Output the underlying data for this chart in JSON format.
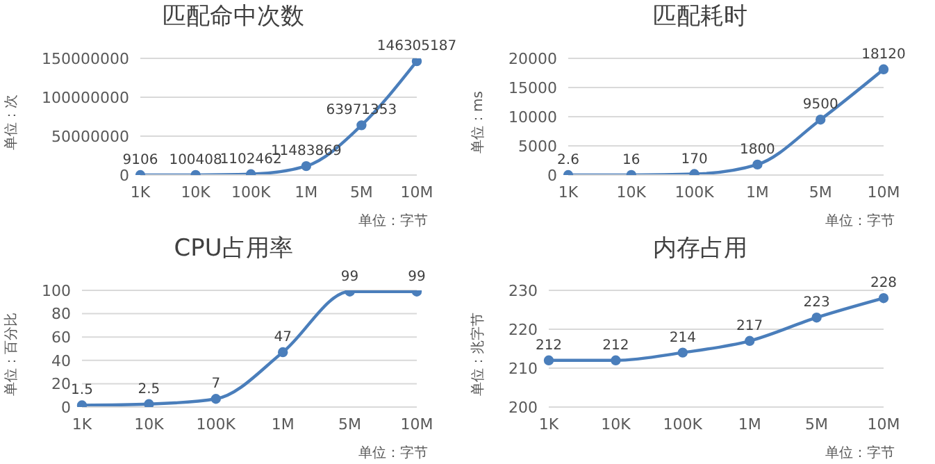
{
  "chart_data": [
    {
      "type": "line",
      "title": "匹配命中次数",
      "ylabel": "单位：次",
      "xlabel": "单位：字节",
      "categories": [
        "1K",
        "10K",
        "100K",
        "1M",
        "5M",
        "10M"
      ],
      "series": [
        {
          "color": "#4a7ebb",
          "values": [
            9106,
            100408,
            1102462,
            11483869,
            63971353,
            146305187
          ]
        }
      ],
      "ylim": [
        0,
        150000000
      ],
      "yticks": [
        0,
        50000000,
        100000000,
        150000000
      ],
      "grid": "y",
      "marker": "circle",
      "data_labels": true,
      "legend": false
    },
    {
      "type": "line",
      "title": "匹配耗时",
      "ylabel": "单位：ms",
      "xlabel": "单位：字节",
      "categories": [
        "1K",
        "10K",
        "100K",
        "1M",
        "5M",
        "10M"
      ],
      "series": [
        {
          "color": "#4a7ebb",
          "values": [
            2.6,
            16,
            170,
            1800,
            9500,
            18120
          ]
        }
      ],
      "ylim": [
        0,
        20000
      ],
      "yticks": [
        0,
        5000,
        10000,
        15000,
        20000
      ],
      "grid": "y",
      "marker": "circle",
      "data_labels": true,
      "legend": false
    },
    {
      "type": "line",
      "title": "CPU占用率",
      "ylabel": "单位：百分比",
      "xlabel": "单位：字节",
      "categories": [
        "1K",
        "10K",
        "100K",
        "1M",
        "5M",
        "10M"
      ],
      "series": [
        {
          "color": "#4a7ebb",
          "values": [
            1.5,
            2.5,
            7,
            47,
            99,
            99
          ]
        }
      ],
      "ylim": [
        0,
        100
      ],
      "yticks": [
        0,
        20,
        40,
        60,
        80,
        100
      ],
      "grid": "y",
      "marker": "circle",
      "data_labels": true,
      "legend": false
    },
    {
      "type": "line",
      "title": "内存占用",
      "ylabel": "单位：兆字节",
      "xlabel": "单位：字节",
      "categories": [
        "1K",
        "10K",
        "100K",
        "1M",
        "5M",
        "10M"
      ],
      "series": [
        {
          "color": "#4a7ebb",
          "values": [
            212,
            212,
            214,
            217,
            223,
            228
          ]
        }
      ],
      "ylim": [
        200,
        230
      ],
      "yticks": [
        200,
        210,
        220,
        230
      ],
      "grid": "y",
      "marker": "circle",
      "data_labels": true,
      "legend": false
    }
  ]
}
